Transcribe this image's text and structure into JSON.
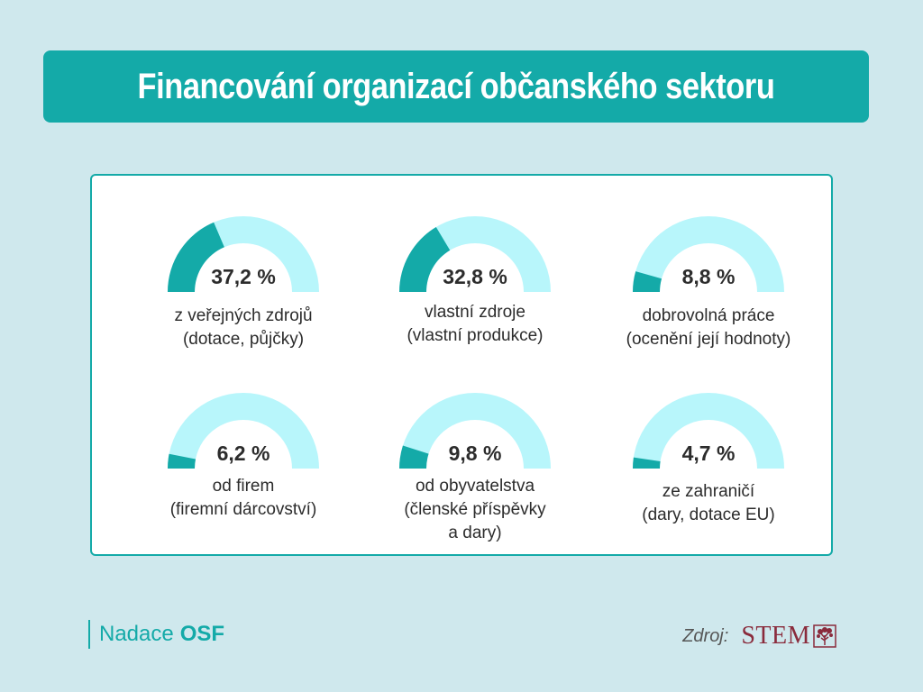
{
  "title": "Financování organizací občanského sektoru",
  "colors": {
    "accent": "#14aaa8",
    "track": "#b8f6fb",
    "text": "#2c2c2c",
    "background": "#cfe8ed",
    "stem": "#8a2b3c"
  },
  "chart_data": {
    "type": "gauge",
    "unit": "%",
    "items": [
      {
        "value": 37.2,
        "value_label": "37,2 %",
        "label_line1": "z veřejných zdrojů",
        "label_line2": "(dotace, půjčky)",
        "label_line3": ""
      },
      {
        "value": 32.8,
        "value_label": "32,8 %",
        "label_line1": "vlastní zdroje",
        "label_line2": "(vlastní produkce)",
        "label_line3": ""
      },
      {
        "value": 8.8,
        "value_label": "8,8 %",
        "label_line1": "dobrovolná práce",
        "label_line2": "(ocenění její hodnoty)",
        "label_line3": ""
      },
      {
        "value": 6.2,
        "value_label": "6,2 %",
        "label_line1": "od firem",
        "label_line2": "(firemní dárcovství)",
        "label_line3": ""
      },
      {
        "value": 9.8,
        "value_label": "9,8 %",
        "label_line1": "od obyvatelstva",
        "label_line2": "(členské příspěvky",
        "label_line3": "a dary)"
      },
      {
        "value": 4.7,
        "value_label": "4,7 %",
        "label_line1": "ze zahraničí",
        "label_line2": "(dary, dotace EU)",
        "label_line3": ""
      }
    ]
  },
  "footer": {
    "org_prefix": "Nadace",
    "org_name": "OSF",
    "source_label": "Zdroj:",
    "source_name": "STEM",
    "source_icon": "tree-icon"
  }
}
